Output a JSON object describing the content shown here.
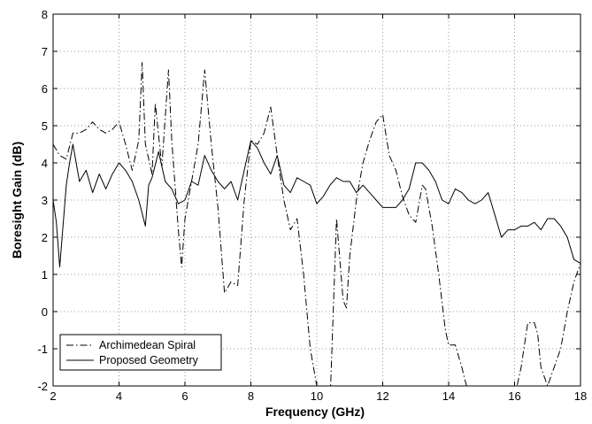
{
  "chart_data": {
    "type": "line",
    "title": "",
    "xlabel": "Frequency (GHz)",
    "ylabel": "Boresight Gain (dB)",
    "xlim": [
      2,
      18
    ],
    "ylim": [
      -2,
      8
    ],
    "x_ticks": [
      "2",
      "4",
      "6",
      "8",
      "10",
      "12",
      "14",
      "16",
      "18"
    ],
    "y_ticks": [
      "8",
      "7",
      "6",
      "5",
      "4",
      "3",
      "2",
      "1",
      "0",
      "-1",
      "-2"
    ],
    "grid": true,
    "legend_position": "bottom-left",
    "series": [
      {
        "name": "Archimedean Spiral",
        "style": "dash-dot",
        "x": [
          2.0,
          2.2,
          2.4,
          2.6,
          2.8,
          3.0,
          3.2,
          3.4,
          3.6,
          3.8,
          4.0,
          4.2,
          4.4,
          4.6,
          4.7,
          4.8,
          5.0,
          5.1,
          5.3,
          5.5,
          5.6,
          5.8,
          5.9,
          6.0,
          6.2,
          6.4,
          6.6,
          6.8,
          7.0,
          7.2,
          7.4,
          7.6,
          7.8,
          8.0,
          8.2,
          8.4,
          8.6,
          8.8,
          9.0,
          9.2,
          9.4,
          9.6,
          9.8,
          10.0,
          10.2,
          10.4,
          10.6,
          10.8,
          10.9,
          11.0,
          11.2,
          11.4,
          11.6,
          11.8,
          12.0,
          12.2,
          12.4,
          12.6,
          12.8,
          13.0,
          13.2,
          13.3,
          13.5,
          13.7,
          13.9,
          14.0,
          14.2,
          14.4,
          14.6,
          14.8,
          15.0,
          15.2,
          15.4,
          15.6,
          15.8,
          16.0,
          16.2,
          16.4,
          16.6,
          16.7,
          16.8,
          17.0,
          17.2,
          17.4,
          17.6,
          17.8,
          18.0
        ],
        "y": [
          4.5,
          4.2,
          4.1,
          4.8,
          4.8,
          4.9,
          5.1,
          4.9,
          4.8,
          4.9,
          5.1,
          4.5,
          3.8,
          4.6,
          6.7,
          4.5,
          3.7,
          5.6,
          3.9,
          6.5,
          4.6,
          2.2,
          1.2,
          2.5,
          3.5,
          4.5,
          6.5,
          4.5,
          2.8,
          0.5,
          0.8,
          0.7,
          3.0,
          4.6,
          4.5,
          4.8,
          5.5,
          4.2,
          3.0,
          2.2,
          2.5,
          1.0,
          -1.0,
          -2.0,
          -2.5,
          -2.5,
          2.5,
          0.3,
          0.1,
          1.5,
          3.0,
          4.0,
          4.6,
          5.1,
          5.3,
          4.2,
          3.8,
          3.1,
          2.6,
          2.4,
          3.4,
          3.3,
          2.3,
          1.0,
          -0.5,
          -0.9,
          -0.9,
          -1.5,
          -2.2,
          -2.5,
          -2.3,
          -2.5,
          -2.3,
          -2.5,
          -2.5,
          -2.3,
          -1.5,
          -0.3,
          -0.3,
          -0.6,
          -1.5,
          -2.0,
          -1.5,
          -1.0,
          0.0,
          0.8,
          1.3
        ]
      },
      {
        "name": "Proposed Geometry",
        "style": "solid",
        "x": [
          2.0,
          2.1,
          2.2,
          2.3,
          2.4,
          2.5,
          2.6,
          2.7,
          2.8,
          3.0,
          3.2,
          3.4,
          3.6,
          3.8,
          4.0,
          4.2,
          4.4,
          4.6,
          4.8,
          4.9,
          5.0,
          5.2,
          5.4,
          5.6,
          5.8,
          6.0,
          6.2,
          6.4,
          6.6,
          6.8,
          7.0,
          7.2,
          7.4,
          7.6,
          7.8,
          8.0,
          8.2,
          8.4,
          8.6,
          8.8,
          9.0,
          9.2,
          9.4,
          9.6,
          9.8,
          10.0,
          10.2,
          10.4,
          10.6,
          10.8,
          11.0,
          11.2,
          11.4,
          11.6,
          11.8,
          12.0,
          12.2,
          12.4,
          12.6,
          12.8,
          13.0,
          13.2,
          13.4,
          13.6,
          13.8,
          14.0,
          14.2,
          14.4,
          14.6,
          14.8,
          15.0,
          15.2,
          15.4,
          15.6,
          15.8,
          16.0,
          16.2,
          16.4,
          16.6,
          16.8,
          17.0,
          17.2,
          17.4,
          17.6,
          17.8,
          18.0
        ],
        "y": [
          3.0,
          2.4,
          1.2,
          2.3,
          3.4,
          4.0,
          4.5,
          4.0,
          3.5,
          3.8,
          3.2,
          3.7,
          3.3,
          3.7,
          4.0,
          3.8,
          3.5,
          3.0,
          2.3,
          3.4,
          3.6,
          4.3,
          3.5,
          3.3,
          2.9,
          3.0,
          3.5,
          3.4,
          4.2,
          3.8,
          3.5,
          3.3,
          3.5,
          3.0,
          3.8,
          4.6,
          4.4,
          4.0,
          3.7,
          4.2,
          3.4,
          3.2,
          3.6,
          3.5,
          3.4,
          2.9,
          3.1,
          3.4,
          3.6,
          3.5,
          3.5,
          3.2,
          3.4,
          3.2,
          3.0,
          2.8,
          2.8,
          2.8,
          3.0,
          3.3,
          4.0,
          4.0,
          3.8,
          3.5,
          3.0,
          2.9,
          3.3,
          3.2,
          3.0,
          2.9,
          3.0,
          3.2,
          2.6,
          2.0,
          2.2,
          2.2,
          2.3,
          2.3,
          2.4,
          2.2,
          2.5,
          2.5,
          2.3,
          2.0,
          1.4,
          1.3
        ]
      }
    ]
  }
}
